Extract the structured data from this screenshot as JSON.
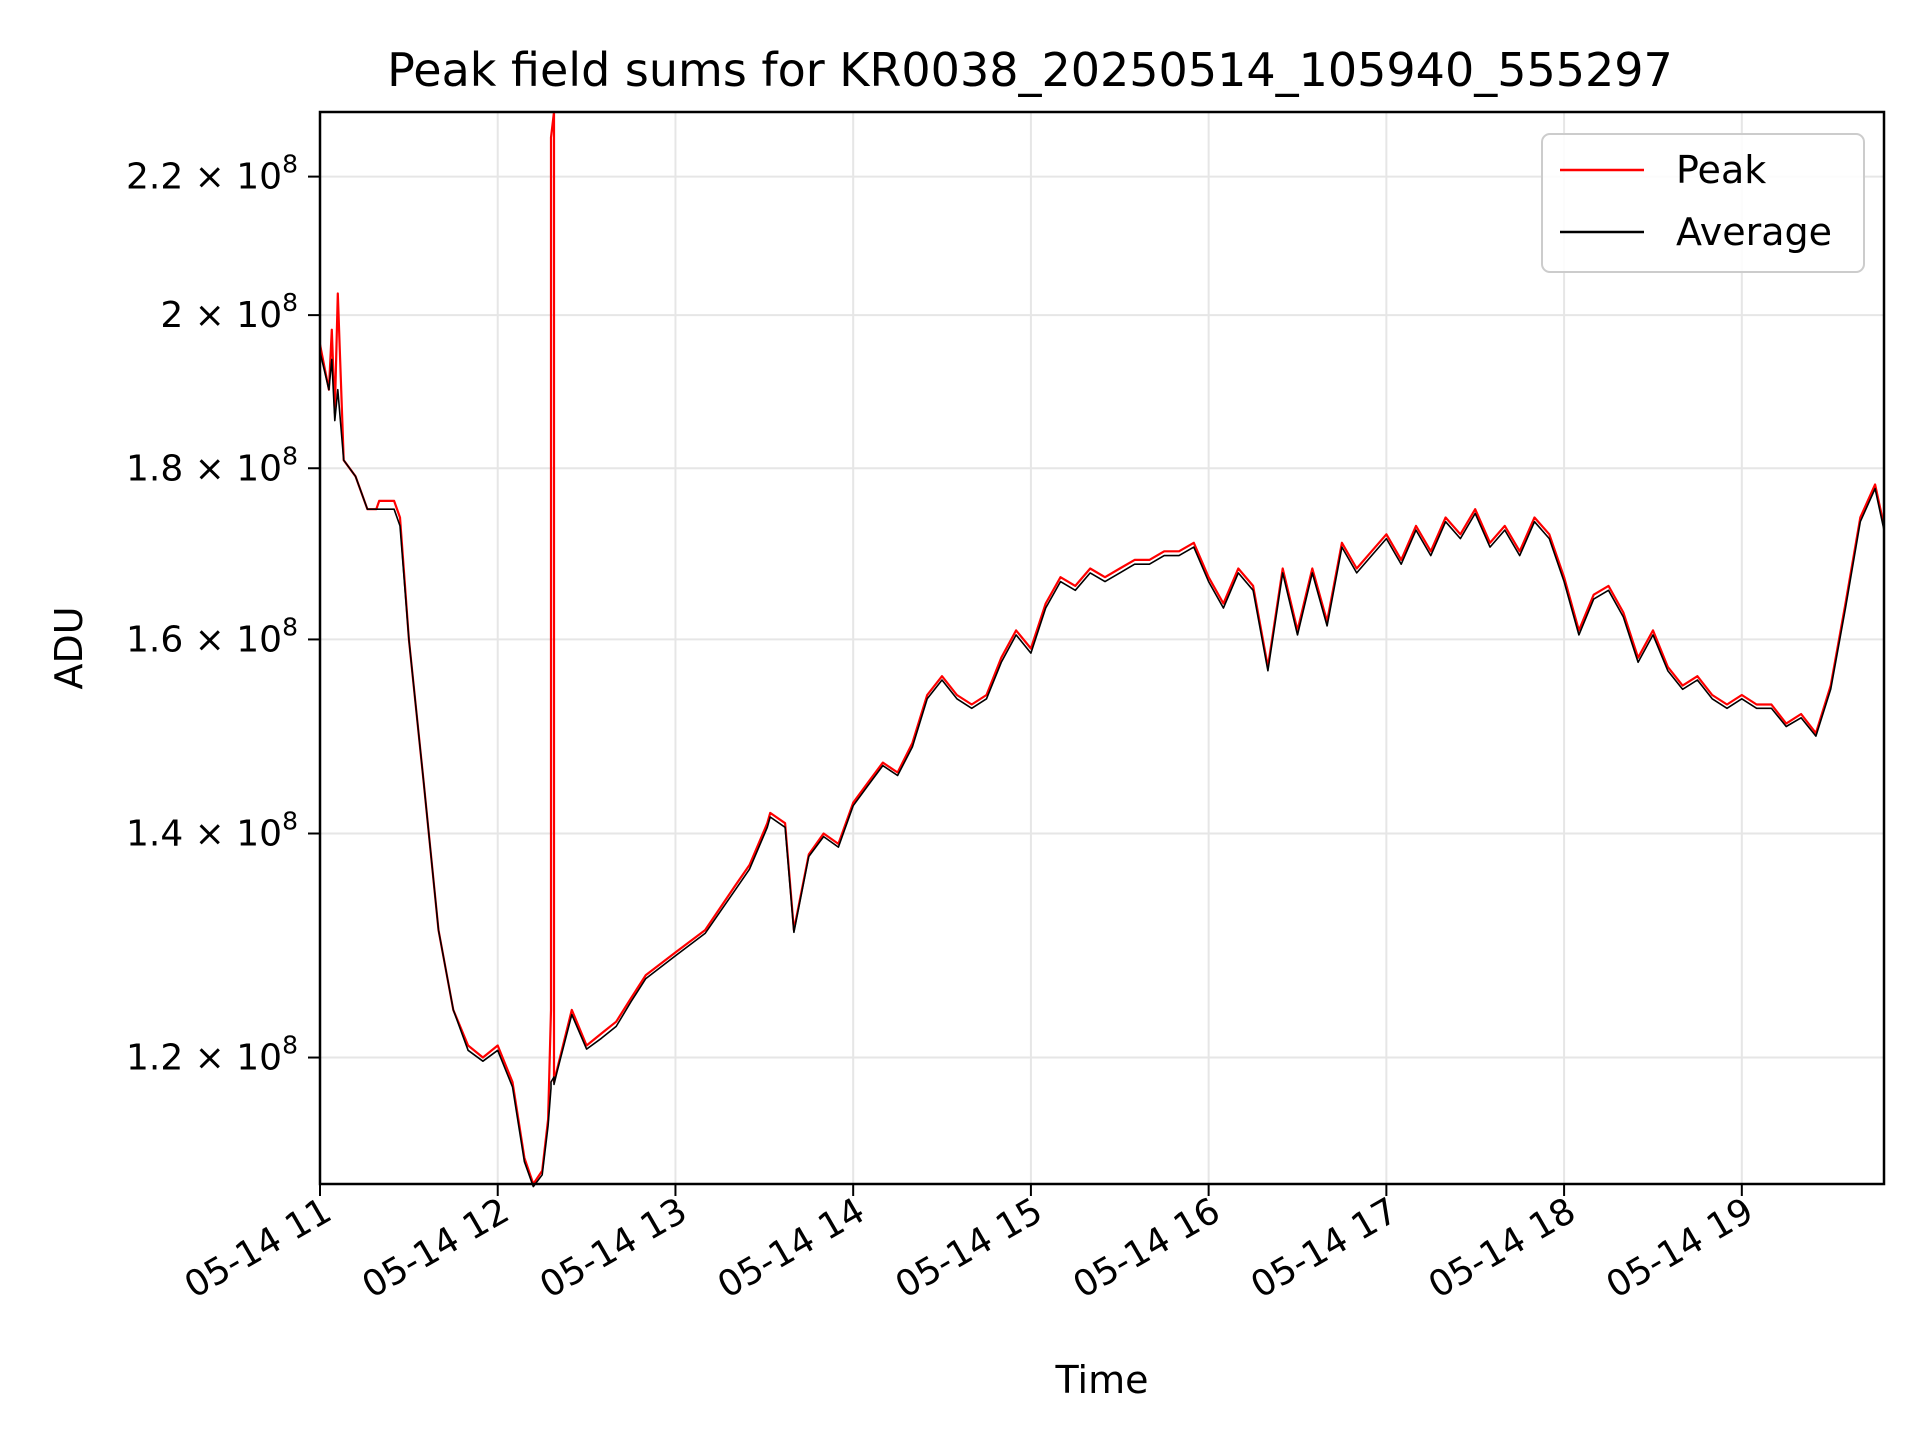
{
  "chart_data": {
    "type": "line",
    "title": "Peak field sums for KR0038_20250514_105940_555297",
    "xlabel": "Time",
    "ylabel": "ADU",
    "x_unit": "hours",
    "xlim": [
      "05-14 11:00",
      "05-14 19:48"
    ],
    "ylim": [
      110000000,
      230000000
    ],
    "y_scale": "log",
    "grid": true,
    "legend_position": "upper right",
    "x_ticks": [
      {
        "label": "05-14 11",
        "value": 11
      },
      {
        "label": "05-14 12",
        "value": 12
      },
      {
        "label": "05-14 13",
        "value": 13
      },
      {
        "label": "05-14 14",
        "value": 14
      },
      {
        "label": "05-14 15",
        "value": 15
      },
      {
        "label": "05-14 16",
        "value": 16
      },
      {
        "label": "05-14 17",
        "value": 17
      },
      {
        "label": "05-14 18",
        "value": 18
      },
      {
        "label": "05-14 19",
        "value": 19
      }
    ],
    "y_ticks": [
      {
        "mantissa": "1.2",
        "exp": "8",
        "value": 120000000
      },
      {
        "mantissa": "1.4",
        "exp": "8",
        "value": 140000000
      },
      {
        "mantissa": "1.6",
        "exp": "8",
        "value": 160000000
      },
      {
        "mantissa": "1.8",
        "exp": "8",
        "value": 180000000
      },
      {
        "mantissa": "2",
        "exp": "8",
        "value": 200000000
      },
      {
        "mantissa": "2.2",
        "exp": "8",
        "value": 220000000
      }
    ],
    "series": [
      {
        "name": "Peak",
        "color": "#ff0000",
        "x": [
          "05-14 11:00",
          "05-14 11:03",
          "05-14 11:04",
          "05-14 11:05",
          "05-14 11:06",
          "05-14 11:08",
          "05-14 11:12",
          "05-14 11:16",
          "05-14 11:19",
          "05-14 11:20",
          "05-14 11:25",
          "05-14 11:27",
          "05-14 11:30",
          "05-14 11:35",
          "05-14 11:40",
          "05-14 11:45",
          "05-14 11:50",
          "05-14 11:55",
          "05-14 12:00",
          "05-14 12:05",
          "05-14 12:09",
          "05-14 12:12",
          "05-14 12:15",
          "05-14 12:17",
          "05-14 12:18",
          "05-14 12:18",
          "05-14 12:19",
          "05-14 12:19",
          "05-14 12:20",
          "05-14 12:25",
          "05-14 12:30",
          "05-14 12:35",
          "05-14 12:40",
          "05-14 12:45",
          "05-14 12:50",
          "05-14 13:00",
          "05-14 13:10",
          "05-14 13:20",
          "05-14 13:25",
          "05-14 13:31",
          "05-14 13:32",
          "05-14 13:37",
          "05-14 13:40",
          "05-14 13:45",
          "05-14 13:50",
          "05-14 13:55",
          "05-14 14:00",
          "05-14 14:05",
          "05-14 14:10",
          "05-14 14:15",
          "05-14 14:20",
          "05-14 14:25",
          "05-14 14:30",
          "05-14 14:35",
          "05-14 14:40",
          "05-14 14:45",
          "05-14 14:50",
          "05-14 14:55",
          "05-14 15:00",
          "05-14 15:05",
          "05-14 15:10",
          "05-14 15:15",
          "05-14 15:20",
          "05-14 15:25",
          "05-14 15:30",
          "05-14 15:35",
          "05-14 15:40",
          "05-14 15:45",
          "05-14 15:50",
          "05-14 15:55",
          "05-14 16:00",
          "05-14 16:05",
          "05-14 16:10",
          "05-14 16:15",
          "05-14 16:20",
          "05-14 16:25",
          "05-14 16:30",
          "05-14 16:35",
          "05-14 16:40",
          "05-14 16:45",
          "05-14 16:50",
          "05-14 16:55",
          "05-14 17:00",
          "05-14 17:05",
          "05-14 17:10",
          "05-14 17:15",
          "05-14 17:20",
          "05-14 17:25",
          "05-14 17:30",
          "05-14 17:35",
          "05-14 17:40",
          "05-14 17:45",
          "05-14 17:50",
          "05-14 17:55",
          "05-14 18:00",
          "05-14 18:05",
          "05-14 18:10",
          "05-14 18:15",
          "05-14 18:20",
          "05-14 18:25",
          "05-14 18:30",
          "05-14 18:35",
          "05-14 18:40",
          "05-14 18:45",
          "05-14 18:50",
          "05-14 18:55",
          "05-14 19:00",
          "05-14 19:05",
          "05-14 19:10",
          "05-14 19:15",
          "05-14 19:20",
          "05-14 19:25",
          "05-14 19:30",
          "05-14 19:35",
          "05-14 19:40",
          "05-14 19:45",
          "05-14 19:48"
        ],
        "y": [
          196000000,
          190000000,
          198000000,
          187000000,
          203000000,
          181000000,
          179000000,
          175000000,
          175000000,
          176000000,
          176000000,
          174000000,
          160000000,
          145000000,
          131000000,
          124000000,
          121000000,
          120000000,
          121000000,
          118000000,
          112000000,
          110000000,
          111000000,
          115000000,
          124000000,
          226000000,
          230000000,
          118000000,
          119000000,
          124000000,
          121000000,
          122000000,
          123000000,
          125000000,
          127000000,
          129000000,
          131000000,
          135000000,
          137000000,
          141000000,
          142000000,
          141000000,
          131000000,
          138000000,
          140000000,
          139000000,
          143000000,
          145000000,
          147000000,
          146000000,
          149000000,
          154000000,
          156000000,
          154000000,
          153000000,
          154000000,
          158000000,
          161000000,
          159000000,
          164000000,
          167000000,
          166000000,
          168000000,
          167000000,
          168000000,
          169000000,
          169000000,
          170000000,
          170000000,
          171000000,
          167000000,
          164000000,
          168000000,
          166000000,
          157000000,
          168000000,
          161000000,
          168000000,
          162000000,
          171000000,
          168000000,
          170000000,
          172000000,
          169000000,
          173000000,
          170000000,
          174000000,
          172000000,
          175000000,
          171000000,
          173000000,
          170000000,
          174000000,
          172000000,
          167000000,
          161000000,
          165000000,
          166000000,
          163000000,
          158000000,
          161000000,
          157000000,
          155000000,
          156000000,
          154000000,
          153000000,
          154000000,
          153000000,
          153000000,
          151000000,
          152000000,
          150000000,
          155000000,
          164000000,
          174000000,
          178000000,
          173000000
        ]
      },
      {
        "name": "Average",
        "color": "#000000",
        "x": [
          "05-14 11:00",
          "05-14 11:03",
          "05-14 11:04",
          "05-14 11:05",
          "05-14 11:06",
          "05-14 11:08",
          "05-14 11:12",
          "05-14 11:16",
          "05-14 11:19",
          "05-14 11:20",
          "05-14 11:25",
          "05-14 11:27",
          "05-14 11:30",
          "05-14 11:35",
          "05-14 11:40",
          "05-14 11:45",
          "05-14 11:50",
          "05-14 11:55",
          "05-14 12:00",
          "05-14 12:05",
          "05-14 12:09",
          "05-14 12:12",
          "05-14 12:15",
          "05-14 12:17",
          "05-14 12:18",
          "05-14 12:18",
          "05-14 12:19",
          "05-14 12:19",
          "05-14 12:20",
          "05-14 12:25",
          "05-14 12:30",
          "05-14 12:35",
          "05-14 12:40",
          "05-14 12:45",
          "05-14 12:50",
          "05-14 13:00",
          "05-14 13:10",
          "05-14 13:20",
          "05-14 13:25",
          "05-14 13:31",
          "05-14 13:32",
          "05-14 13:37",
          "05-14 13:40",
          "05-14 13:45",
          "05-14 13:50",
          "05-14 13:55",
          "05-14 14:00",
          "05-14 14:05",
          "05-14 14:10",
          "05-14 14:15",
          "05-14 14:20",
          "05-14 14:25",
          "05-14 14:30",
          "05-14 14:35",
          "05-14 14:40",
          "05-14 14:45",
          "05-14 14:50",
          "05-14 14:55",
          "05-14 15:00",
          "05-14 15:05",
          "05-14 15:10",
          "05-14 15:15",
          "05-14 15:20",
          "05-14 15:25",
          "05-14 15:30",
          "05-14 15:35",
          "05-14 15:40",
          "05-14 15:45",
          "05-14 15:50",
          "05-14 15:55",
          "05-14 16:00",
          "05-14 16:05",
          "05-14 16:10",
          "05-14 16:15",
          "05-14 16:20",
          "05-14 16:25",
          "05-14 16:30",
          "05-14 16:35",
          "05-14 16:40",
          "05-14 16:45",
          "05-14 16:50",
          "05-14 16:55",
          "05-14 17:00",
          "05-14 17:05",
          "05-14 17:10",
          "05-14 17:15",
          "05-14 17:20",
          "05-14 17:25",
          "05-14 17:30",
          "05-14 17:35",
          "05-14 17:40",
          "05-14 17:45",
          "05-14 17:50",
          "05-14 17:55",
          "05-14 18:00",
          "05-14 18:05",
          "05-14 18:10",
          "05-14 18:15",
          "05-14 18:20",
          "05-14 18:25",
          "05-14 18:30",
          "05-14 18:35",
          "05-14 18:40",
          "05-14 18:45",
          "05-14 18:50",
          "05-14 18:55",
          "05-14 19:00",
          "05-14 19:05",
          "05-14 19:10",
          "05-14 19:15",
          "05-14 19:20",
          "05-14 19:25",
          "05-14 19:30",
          "05-14 19:35",
          "05-14 19:40",
          "05-14 19:45",
          "05-14 19:48"
        ],
        "y": [
          195000000,
          190000000,
          194000000,
          186000000,
          190000000,
          181000000,
          179000000,
          175000000,
          175000000,
          175000000,
          175000000,
          173000000,
          160000000,
          145000000,
          131000000,
          124000000,
          120600000,
          119700000,
          120600000,
          117600000,
          111700000,
          109800000,
          110700000,
          114500000,
          117500000,
          118000000,
          118400000,
          117800000,
          118800000,
          123600000,
          120700000,
          121600000,
          122600000,
          124700000,
          126700000,
          128700000,
          130700000,
          134600000,
          136600000,
          140600000,
          141600000,
          140600000,
          130800000,
          137800000,
          139700000,
          138700000,
          142700000,
          144700000,
          146700000,
          145700000,
          148600000,
          153600000,
          155600000,
          153600000,
          152600000,
          153600000,
          157500000,
          160500000,
          158500000,
          163500000,
          166500000,
          165500000,
          167500000,
          166500000,
          167500000,
          168500000,
          168500000,
          169500000,
          169500000,
          170500000,
          166500000,
          163500000,
          167500000,
          165500000,
          156600000,
          167500000,
          160500000,
          167500000,
          161500000,
          170500000,
          167500000,
          169500000,
          171500000,
          168500000,
          172500000,
          169500000,
          173500000,
          171500000,
          174500000,
          170500000,
          172500000,
          169500000,
          173500000,
          171500000,
          166500000,
          160500000,
          164500000,
          165500000,
          162500000,
          157500000,
          160500000,
          156600000,
          154600000,
          155600000,
          153600000,
          152600000,
          153600000,
          152600000,
          152600000,
          150700000,
          151600000,
          149700000,
          154600000,
          163500000,
          173500000,
          177500000,
          172500000
        ]
      }
    ]
  }
}
